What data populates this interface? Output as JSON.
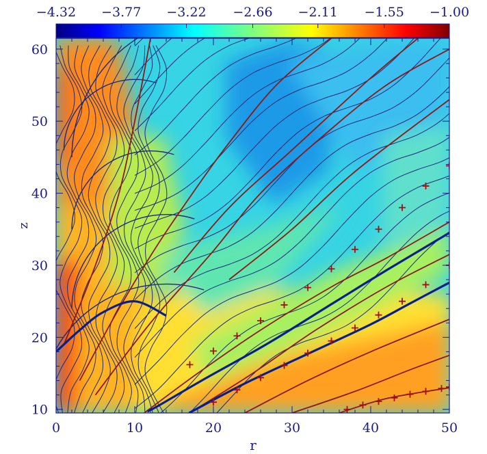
{
  "chart_data": {
    "type": "heatmap",
    "xlabel": "r",
    "ylabel": "z",
    "xlim": [
      0,
      50
    ],
    "ylim": [
      9.5,
      61.5
    ],
    "x_ticks": [
      0,
      10,
      20,
      30,
      40,
      50
    ],
    "x_tick_labels": [
      "0",
      "10",
      "20",
      "30",
      "40",
      "50"
    ],
    "y_ticks": [
      10,
      20,
      30,
      40,
      50,
      60
    ],
    "y_tick_labels": [
      "10",
      "20",
      "30",
      "40",
      "50",
      "60"
    ],
    "colorbar": {
      "position": "top",
      "range": [
        -4.32,
        -1.0
      ],
      "tick_values": [
        -4.32,
        -3.77,
        -3.22,
        -2.66,
        -2.11,
        -1.55,
        -1.0
      ],
      "tick_labels": [
        "−4.32",
        "−3.77",
        "−3.22",
        "−2.66",
        "−2.11",
        "−1.55",
        "−1.00"
      ],
      "colormap": "jet"
    },
    "colors": {
      "axis": "#1a1a8c",
      "field_line": "#8b1a1a",
      "contour": "#1a2a7a",
      "marker": "#a01010"
    },
    "field_lines": [
      [
        [
          11.2,
          9.5
        ],
        [
          18,
          15
        ],
        [
          26,
          21
        ],
        [
          35,
          27
        ],
        [
          42,
          31
        ],
        [
          50,
          36
        ]
      ],
      [
        [
          17,
          9.5
        ],
        [
          25,
          15
        ],
        [
          33,
          21
        ],
        [
          42,
          27
        ],
        [
          50,
          31.5
        ]
      ],
      [
        [
          24,
          9.5
        ],
        [
          32,
          14
        ],
        [
          40,
          18
        ],
        [
          50,
          22.5
        ]
      ],
      [
        [
          30,
          9.5
        ],
        [
          38,
          12.5
        ],
        [
          45,
          15.5
        ],
        [
          50,
          17.5
        ]
      ],
      [
        [
          36,
          9.5
        ],
        [
          42,
          11.5
        ],
        [
          50,
          13
        ]
      ],
      [
        [
          3,
          14
        ],
        [
          8,
          24
        ],
        [
          13,
          33
        ],
        [
          18,
          41
        ],
        [
          22,
          47
        ],
        [
          28,
          55
        ],
        [
          35,
          61.5
        ]
      ],
      [
        [
          1,
          19
        ],
        [
          5,
          30
        ],
        [
          8,
          40
        ],
        [
          10,
          50
        ],
        [
          12,
          61.5
        ]
      ],
      [
        [
          5,
          12
        ],
        [
          12,
          22
        ],
        [
          20,
          32
        ],
        [
          26,
          40
        ],
        [
          34,
          48
        ],
        [
          42,
          55
        ],
        [
          50,
          60
        ]
      ],
      [
        [
          15,
          29
        ],
        [
          22,
          38
        ],
        [
          30,
          46
        ],
        [
          40,
          56
        ],
        [
          46,
          61.5
        ]
      ],
      [
        [
          22,
          28
        ],
        [
          30,
          35
        ],
        [
          38,
          43
        ],
        [
          50,
          53
        ]
      ]
    ],
    "shock_lines": [
      [
        [
          11.6,
          9.7
        ],
        [
          13,
          10.5
        ],
        [
          19,
          14.3
        ],
        [
          27,
          19.2
        ],
        [
          35,
          24.6
        ],
        [
          42,
          29.3
        ],
        [
          50,
          34.5
        ]
      ],
      [
        [
          16.9,
          9.5
        ],
        [
          24,
          13.6
        ],
        [
          32,
          17.7
        ],
        [
          40,
          21.8
        ],
        [
          45,
          24.7
        ],
        [
          50,
          27.6
        ]
      ],
      [
        [
          0,
          18
        ],
        [
          3,
          21
        ],
        [
          6,
          23.5
        ],
        [
          10,
          25
        ],
        [
          14,
          23
        ]
      ]
    ],
    "marker_series": [
      {
        "symbol": "+",
        "x": [
          17,
          20,
          23,
          26,
          29,
          32,
          35,
          38,
          41,
          44,
          47,
          50
        ],
        "y": [
          16.2,
          18.1,
          20.2,
          22.3,
          24.5,
          26.9,
          29.5,
          32.2,
          35.0,
          38.0,
          41.0,
          43.8
        ]
      },
      {
        "symbol": "+",
        "x": [
          20,
          23,
          26,
          29,
          32,
          35,
          38,
          41,
          44,
          47,
          50
        ],
        "y": [
          11.0,
          12.7,
          14.4,
          16.1,
          17.8,
          19.5,
          21.3,
          23.1,
          25.0,
          27.3,
          30.0
        ]
      },
      {
        "symbol": "+",
        "x": [
          37,
          39,
          41,
          43,
          45,
          47,
          49,
          50
        ],
        "y": [
          10.0,
          10.6,
          11.1,
          11.6,
          12.1,
          12.5,
          12.9,
          13.1
        ]
      }
    ]
  }
}
